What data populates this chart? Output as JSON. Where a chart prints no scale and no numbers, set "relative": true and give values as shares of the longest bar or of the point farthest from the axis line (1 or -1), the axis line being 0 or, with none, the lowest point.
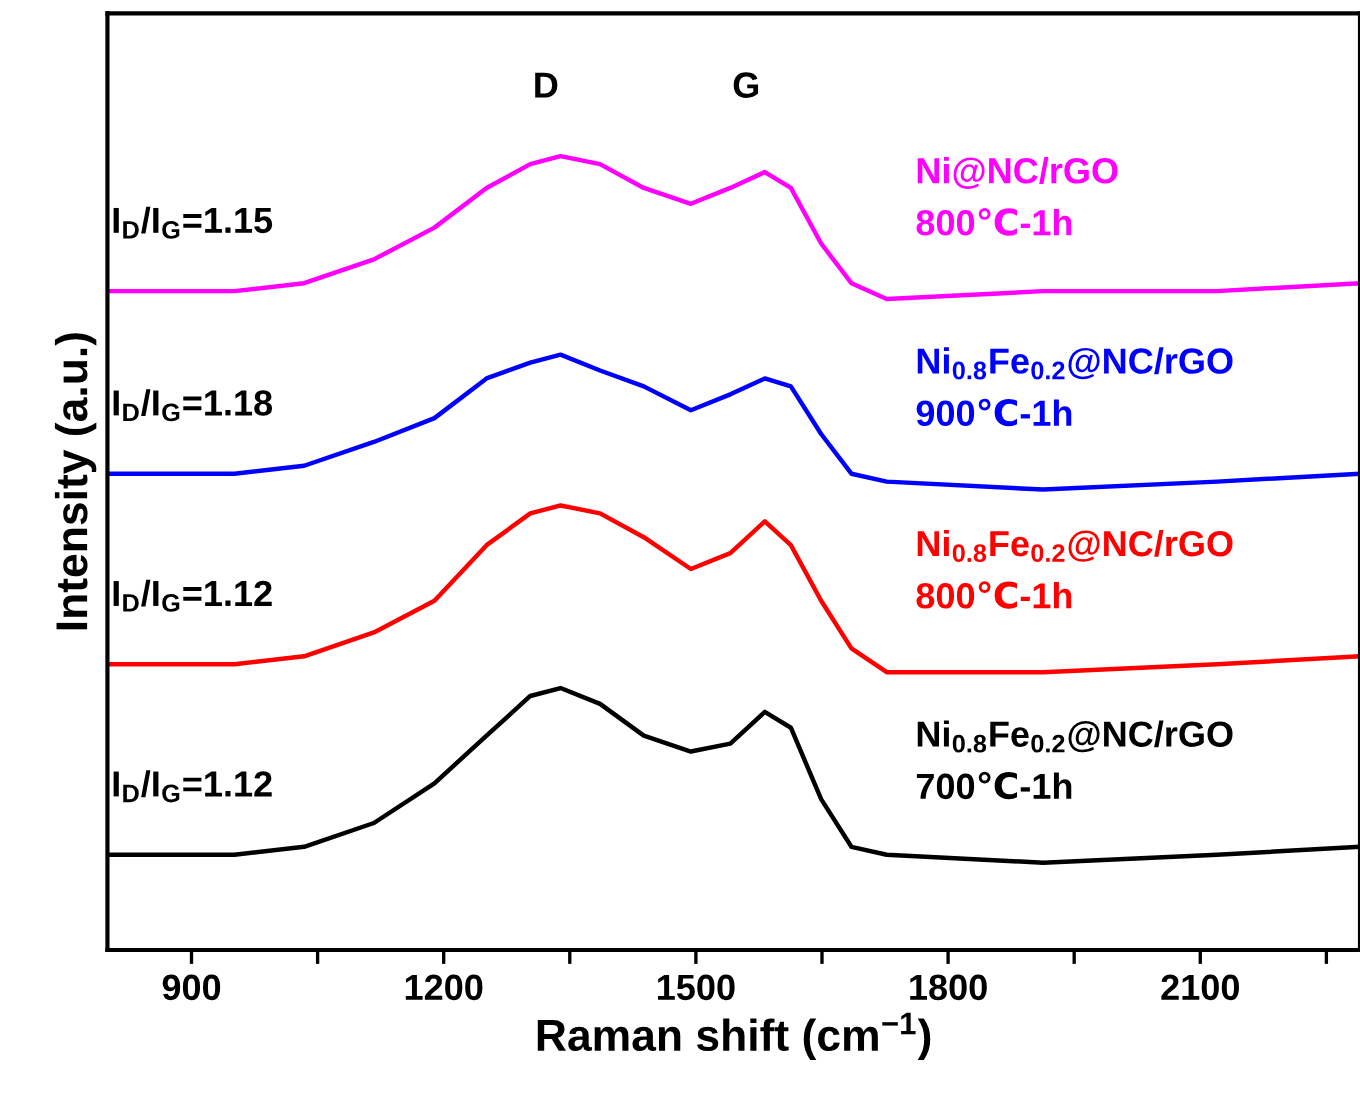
{
  "chart_data": {
    "type": "line",
    "relative": true,
    "xlabel": "Raman shift (cm$^{−1}$)",
    "ylabel": "Intensity (a.u.)",
    "xlim": [
      800,
      2290
    ],
    "xticks": [
      900,
      {
        "value": 1050,
        "label": null
      },
      1200,
      {
        "value": 1350,
        "label": null
      },
      1500,
      {
        "value": 1650,
        "label": null
      },
      1800,
      {
        "value": 1950,
        "label": null
      },
      2100,
      {
        "value": 2250,
        "label": null
      }
    ],
    "tick_labels": "x",
    "grid": false,
    "legend": false,
    "marker": "none",
    "line_style": "solid",
    "x": [
      800,
      951,
      1034,
      1117,
      1189,
      1251,
      1303,
      1339,
      1386,
      1438,
      1494,
      1541,
      1582,
      1613,
      1649,
      1685,
      1727,
      1913,
      2120,
      2290
    ],
    "series": [
      {
        "name": "Ni@NC/rGO\n800℃-1h",
        "color": "#ff00ff",
        "values": [
          0.83,
          0.83,
          0.84,
          0.87,
          0.91,
          0.96,
          0.99,
          1,
          0.99,
          0.96,
          0.94,
          0.96,
          0.98,
          0.96,
          0.89,
          0.84,
          0.82,
          0.83,
          0.83,
          0.84
        ]
      },
      {
        "name": "Ni$_{0.8}$Fe$_{0.2}$@NC/rGO\n900℃-1h",
        "color": "#0000ff",
        "values": [
          0.6,
          0.6,
          0.61,
          0.64,
          0.67,
          0.72,
          0.74,
          0.75,
          0.73,
          0.71,
          0.68,
          0.7,
          0.72,
          0.71,
          0.65,
          0.6,
          0.59,
          0.58,
          0.59,
          0.6
        ]
      },
      {
        "name": "Ni$_{0.8}$Fe$_{0.2}$@NC/rGO\n800℃-1h",
        "color": "#ff0000",
        "values": [
          0.36,
          0.36,
          0.37,
          0.4,
          0.44,
          0.51,
          0.55,
          0.56,
          0.55,
          0.52,
          0.48,
          0.5,
          0.54,
          0.51,
          0.44,
          0.38,
          0.35,
          0.35,
          0.36,
          0.37
        ]
      },
      {
        "name": "Ni$_{0.8}$Fe$_{0.2}$@NC/rGO\n700℃-1h",
        "color": "#000000",
        "values": [
          0.12,
          0.12,
          0.13,
          0.16,
          0.21,
          0.27,
          0.32,
          0.33,
          0.31,
          0.27,
          0.25,
          0.26,
          0.3,
          0.28,
          0.19,
          0.13,
          0.12,
          0.11,
          0.12,
          0.13
        ]
      }
    ],
    "annotations": [
      "D",
      "G",
      "I$_{D}$/I$_{G}$=1.15",
      "I$_{D}$/I$_{G}$=1.18",
      "I$_{D}$/I$_{G}$=1.12",
      "I$_{D}$/I$_{G}$=1.12"
    ]
  }
}
